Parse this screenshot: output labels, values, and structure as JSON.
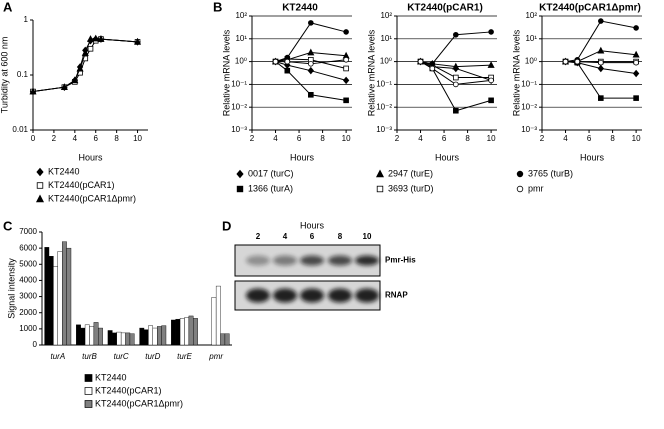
{
  "chart_data": [
    {
      "type": "line",
      "label": "A",
      "ylabel": "Turbidity at 600 nm",
      "xlabel": "Hours",
      "log_y": true,
      "x": [
        0,
        3,
        4,
        4.5,
        5,
        5.5,
        6,
        6.5,
        10
      ],
      "xlim": [
        0,
        11
      ],
      "xticks": [
        0,
        2,
        4,
        6,
        8,
        10
      ],
      "ylim": [
        0.01,
        1
      ],
      "yticks": [
        0.01,
        0.1,
        1
      ],
      "series": [
        {
          "name": "KT2440",
          "color": "#000000",
          "marker": "diamond",
          "marker_fill": "#000000",
          "values": [
            0.05,
            0.06,
            0.08,
            0.14,
            0.28,
            0.42,
            0.45,
            0.45,
            0.4
          ]
        },
        {
          "name": "KT2440(pCAR1)",
          "color": "#000000",
          "marker": "square",
          "marker_fill": "#ffffff",
          "values": [
            0.05,
            0.06,
            0.075,
            0.11,
            0.2,
            0.3,
            0.42,
            0.45,
            0.4
          ]
        },
        {
          "name": "KT2440(pCAR1Δpmr)",
          "color": "#000000",
          "marker": "triangle",
          "marker_fill": "#000000",
          "values": [
            0.05,
            0.06,
            0.08,
            0.13,
            0.25,
            0.45,
            0.46,
            0.45,
            0.4
          ]
        }
      ]
    },
    {
      "type": "multi_line",
      "label": "B",
      "ylabel": "Relative mRNA levels",
      "xlabel": "Hours",
      "log_y": true,
      "grid": true,
      "subplots": [
        "KT2440",
        "KT2440(pCAR1)",
        "KT2440(pCAR1Δpmr)"
      ],
      "x": [
        4,
        5,
        7,
        10
      ],
      "xlim": [
        2,
        10.5
      ],
      "xticks": [
        2,
        4,
        6,
        8,
        10
      ],
      "ylim": [
        0.001,
        100
      ],
      "yticks": [
        {
          "value": 0.001,
          "label": "10⁻³"
        },
        {
          "value": 0.01,
          "label": "10⁻²"
        },
        {
          "value": 0.1,
          "label": "10⁻¹"
        },
        {
          "value": 1,
          "label": "10⁰"
        },
        {
          "value": 10,
          "label": "10¹"
        },
        {
          "value": 100,
          "label": "10²"
        }
      ],
      "series": [
        {
          "name": "0017 (turC)",
          "color": "#000000",
          "marker": "diamond",
          "marker_fill": "#000000",
          "values": [
            [
              1,
              0.7,
              0.4,
              0.15
            ],
            [
              1,
              0.6,
              0.5,
              0.15
            ],
            [
              1,
              0.9,
              0.5,
              0.3
            ]
          ]
        },
        {
          "name": "1366 (turA)",
          "color": "#000000",
          "marker": "square",
          "marker_fill": "#000000",
          "values": [
            [
              1,
              0.4,
              0.035,
              0.02
            ],
            [
              1,
              0.5,
              0.007,
              0.02
            ],
            [
              1,
              0.9,
              0.025,
              0.025
            ]
          ]
        },
        {
          "name": "2947 (turE)",
          "color": "#000000",
          "marker": "triangle",
          "marker_fill": "#000000",
          "values": [
            [
              1,
              1.2,
              2.5,
              1.8
            ],
            [
              1,
              0.8,
              0.6,
              0.7
            ],
            [
              1,
              1,
              3,
              2
            ]
          ]
        },
        {
          "name": "3693 (turD)",
          "color": "#000000",
          "marker": "square",
          "marker_fill": "#ffffff",
          "values": [
            [
              1,
              1.3,
              1.2,
              0.5
            ],
            [
              1,
              0.7,
              0.2,
              0.2
            ],
            [
              1,
              1,
              1,
              1
            ]
          ]
        },
        {
          "name": "3765 (turB)",
          "color": "#000000",
          "marker": "circle",
          "marker_fill": "#000000",
          "values": [
            [
              1,
              1.5,
              50,
              20
            ],
            [
              1,
              0.8,
              15,
              20
            ],
            [
              1,
              1.2,
              60,
              30
            ]
          ]
        },
        {
          "name": "pmr",
          "color": "#000000",
          "marker": "circle",
          "marker_fill": "#ffffff",
          "values": [
            [
              1,
              1,
              0.8,
              1.2
            ],
            [
              1,
              0.5,
              0.1,
              0.15
            ],
            [
              1,
              1,
              0.9,
              0.9
            ]
          ]
        }
      ]
    },
    {
      "type": "bar",
      "label": "C",
      "ylabel": "Signal intensity",
      "categories": [
        "turA",
        "turB",
        "turC",
        "turD",
        "turE",
        "pmr"
      ],
      "ylim": [
        0,
        7000
      ],
      "yticks": [
        0,
        1000,
        2000,
        3000,
        4000,
        5000,
        6000,
        7000
      ],
      "series": [
        {
          "name": "KT2440",
          "color": "#000000",
          "values": [
            [
              6050,
              5500
            ],
            [
              1250,
              1050
            ],
            [
              900,
              750
            ],
            [
              1050,
              950
            ],
            [
              1550,
              1600
            ],
            [
              0,
              0
            ]
          ]
        },
        {
          "name": "KT2440(pCAR1)",
          "color": "#ffffff",
          "values": [
            [
              4850,
              5800
            ],
            [
              1250,
              1150
            ],
            [
              800,
              750
            ],
            [
              1200,
              1050
            ],
            [
              1650,
              1700
            ],
            [
              2950,
              3650
            ]
          ]
        },
        {
          "name": "KT2440(pCAR1Δpmr)",
          "color": "#808080",
          "values": [
            [
              6400,
              6000
            ],
            [
              1400,
              1050
            ],
            [
              750,
              700
            ],
            [
              1150,
              1200
            ],
            [
              1800,
              1650
            ],
            [
              700,
              700
            ]
          ]
        }
      ]
    },
    {
      "type": "blot",
      "label": "D",
      "title": "Hours",
      "lanes": [
        "2",
        "4",
        "6",
        "8",
        "10"
      ],
      "bands": [
        "Pmr-His",
        "RNAP"
      ]
    }
  ]
}
